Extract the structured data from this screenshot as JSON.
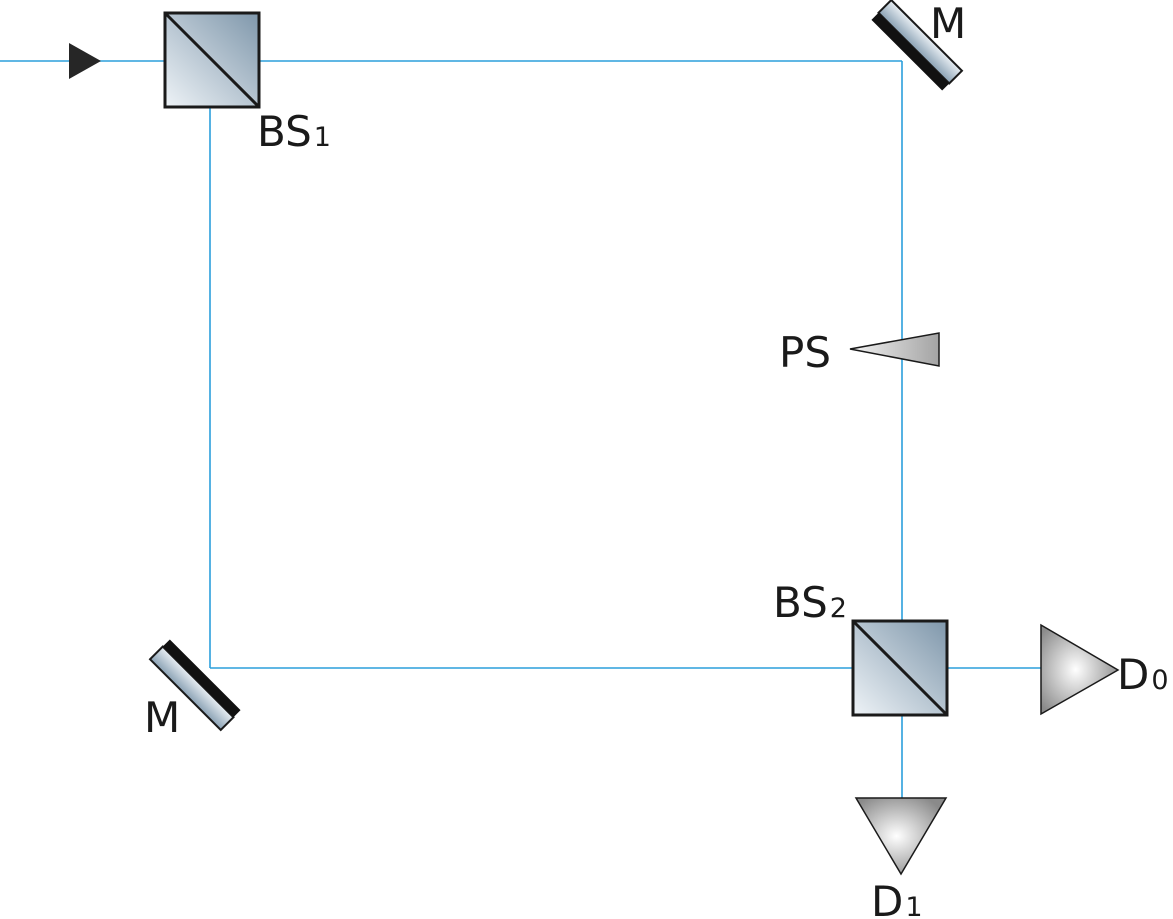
{
  "labels": {
    "bs1": {
      "main": "BS",
      "sub": "1"
    },
    "bs2": {
      "main": "BS",
      "sub": "2"
    },
    "mirror_top": "M",
    "mirror_bottom": "M",
    "phase_shifter": "PS",
    "d0": {
      "main": "D",
      "sub": "0"
    },
    "d1": {
      "main": "D",
      "sub": "1"
    }
  },
  "colors": {
    "beam": "#2b9fdc",
    "outline": "#1a1a1a",
    "glass_dark": "#7f97ab",
    "glass_light": "#eef3f7"
  }
}
